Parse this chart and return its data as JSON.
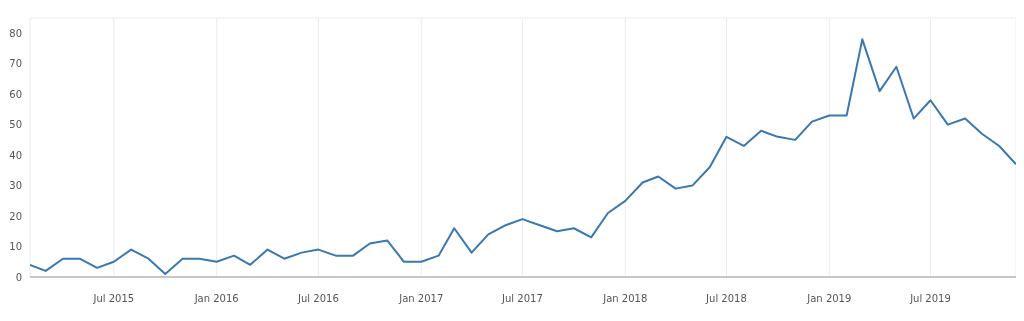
{
  "chart_data": {
    "type": "line",
    "x": [
      "2015-02",
      "2015-03",
      "2015-04",
      "2015-05",
      "2015-06",
      "2015-07",
      "2015-08",
      "2015-09",
      "2015-10",
      "2015-11",
      "2015-12",
      "2016-01",
      "2016-02",
      "2016-03",
      "2016-04",
      "2016-05",
      "2016-06",
      "2016-07",
      "2016-08",
      "2016-09",
      "2016-10",
      "2016-11",
      "2016-12",
      "2017-01",
      "2017-02",
      "2017-03",
      "2017-04",
      "2017-05",
      "2017-06",
      "2017-07",
      "2017-08",
      "2017-09",
      "2017-10",
      "2017-11",
      "2017-12",
      "2018-01",
      "2018-02",
      "2018-03",
      "2018-04",
      "2018-05",
      "2018-06",
      "2018-07",
      "2018-08",
      "2018-09",
      "2018-10",
      "2018-11",
      "2018-12",
      "2019-01",
      "2019-02",
      "2019-03",
      "2019-04",
      "2019-05",
      "2019-06",
      "2019-07",
      "2019-08",
      "2019-09",
      "2019-10",
      "2019-11",
      "2019-12"
    ],
    "series": [
      {
        "color": "#3a78b0",
        "values": [
          4,
          2,
          6,
          6,
          3,
          5,
          9,
          6,
          1,
          6,
          6,
          5,
          7,
          4,
          9,
          6,
          8,
          9,
          7,
          7,
          11,
          12,
          5,
          5,
          7,
          16,
          8,
          14,
          17,
          19,
          17,
          15,
          16,
          13,
          21,
          25,
          31,
          33,
          29,
          30,
          36,
          46,
          43,
          48,
          46,
          45,
          51,
          53,
          53,
          78,
          61,
          69,
          52,
          58,
          50,
          52,
          47,
          43,
          37
        ]
      }
    ],
    "xlim": [
      "2015-02-01",
      "2019-12-01"
    ],
    "xticks": [
      {
        "value": "2015-07-01",
        "label": "Jul 2015"
      },
      {
        "value": "2016-01-01",
        "label": "Jan 2016"
      },
      {
        "value": "2016-07-01",
        "label": "Jul 2016"
      },
      {
        "value": "2017-01-01",
        "label": "Jan 2017"
      },
      {
        "value": "2017-07-01",
        "label": "Jul 2017"
      },
      {
        "value": "2018-01-01",
        "label": "Jan 2018"
      },
      {
        "value": "2018-07-01",
        "label": "Jul 2018"
      },
      {
        "value": "2019-01-01",
        "label": "Jan 2019"
      },
      {
        "value": "2019-07-01",
        "label": "Jul 2019"
      }
    ],
    "ylim": [
      0,
      85
    ],
    "yticks": [
      0,
      10,
      20,
      30,
      40,
      50,
      60,
      70,
      80
    ],
    "grid": true,
    "marker": "none",
    "line_style": "solid",
    "legend": false
  }
}
